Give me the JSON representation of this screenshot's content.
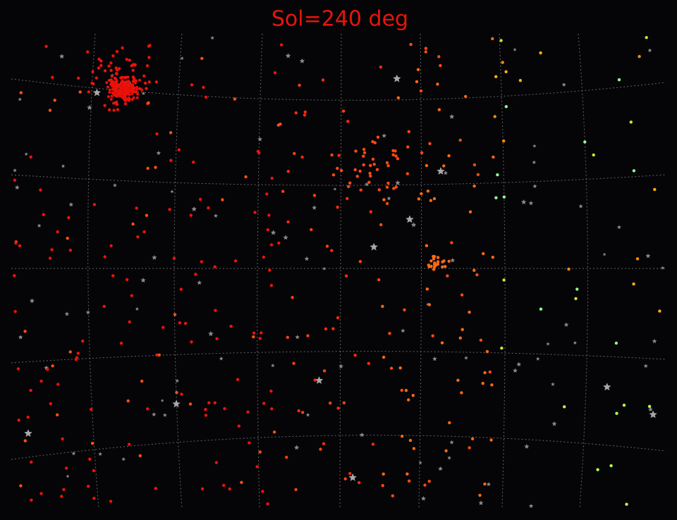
{
  "title": "Sol=240 deg"
}
